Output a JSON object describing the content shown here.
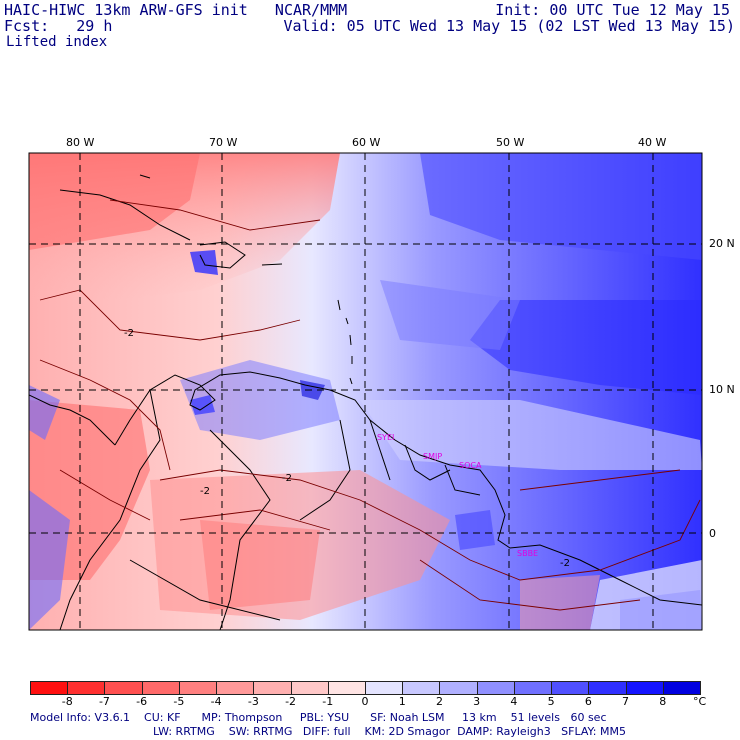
{
  "header": {
    "title": "HAIC-HIWC 13km ARW-GFS init   NCAR/MMM",
    "fcst": "Fcst:   29 h",
    "field": "Lifted index",
    "init": "Init: 00 UTC Tue 12 May 15",
    "valid": "Valid: 05 UTC Wed 13 May 15 (02 LST Wed 13 May 15)"
  },
  "axes": {
    "lon_labels": [
      "80 W",
      "70 W",
      "60 W",
      "50 W",
      "40 W"
    ],
    "lat_labels": [
      "20 N",
      "10 N",
      "0"
    ]
  },
  "contour_labels": [
    "-2",
    "-2",
    "-2",
    "-2"
  ],
  "sites": [
    "SYEI",
    "SMJP",
    "SOCA",
    "SBBE"
  ],
  "colorbar": {
    "labels": [
      "-8",
      "-7",
      "-6",
      "-5",
      "-4",
      "-3",
      "-2",
      "-1",
      "0",
      "1",
      "2",
      "3",
      "4",
      "5",
      "6",
      "7",
      "8"
    ],
    "unit": "°C",
    "colors": [
      "#ff1010",
      "#ff3030",
      "#ff5050",
      "#ff6a6a",
      "#ff8080",
      "#ff9999",
      "#ffb0b0",
      "#ffc8c8",
      "#ffe4e4",
      "#e4e4ff",
      "#c8c8ff",
      "#b0b0ff",
      "#9090ff",
      "#7070ff",
      "#5050ff",
      "#3030ff",
      "#1414ff",
      "#0000e0"
    ]
  },
  "footer": {
    "line1": "Model Info: V3.6.1    CU: KF      MP: Thompson     PBL: YSU      SF: Noah LSM     13 km    51 levels   60 sec",
    "line2": "LW: RRTMG    SW: RRTMG   DIFF: full    KM: 2D Smagor  DAMP: Rayleigh3   SFLAY: MM5"
  }
}
